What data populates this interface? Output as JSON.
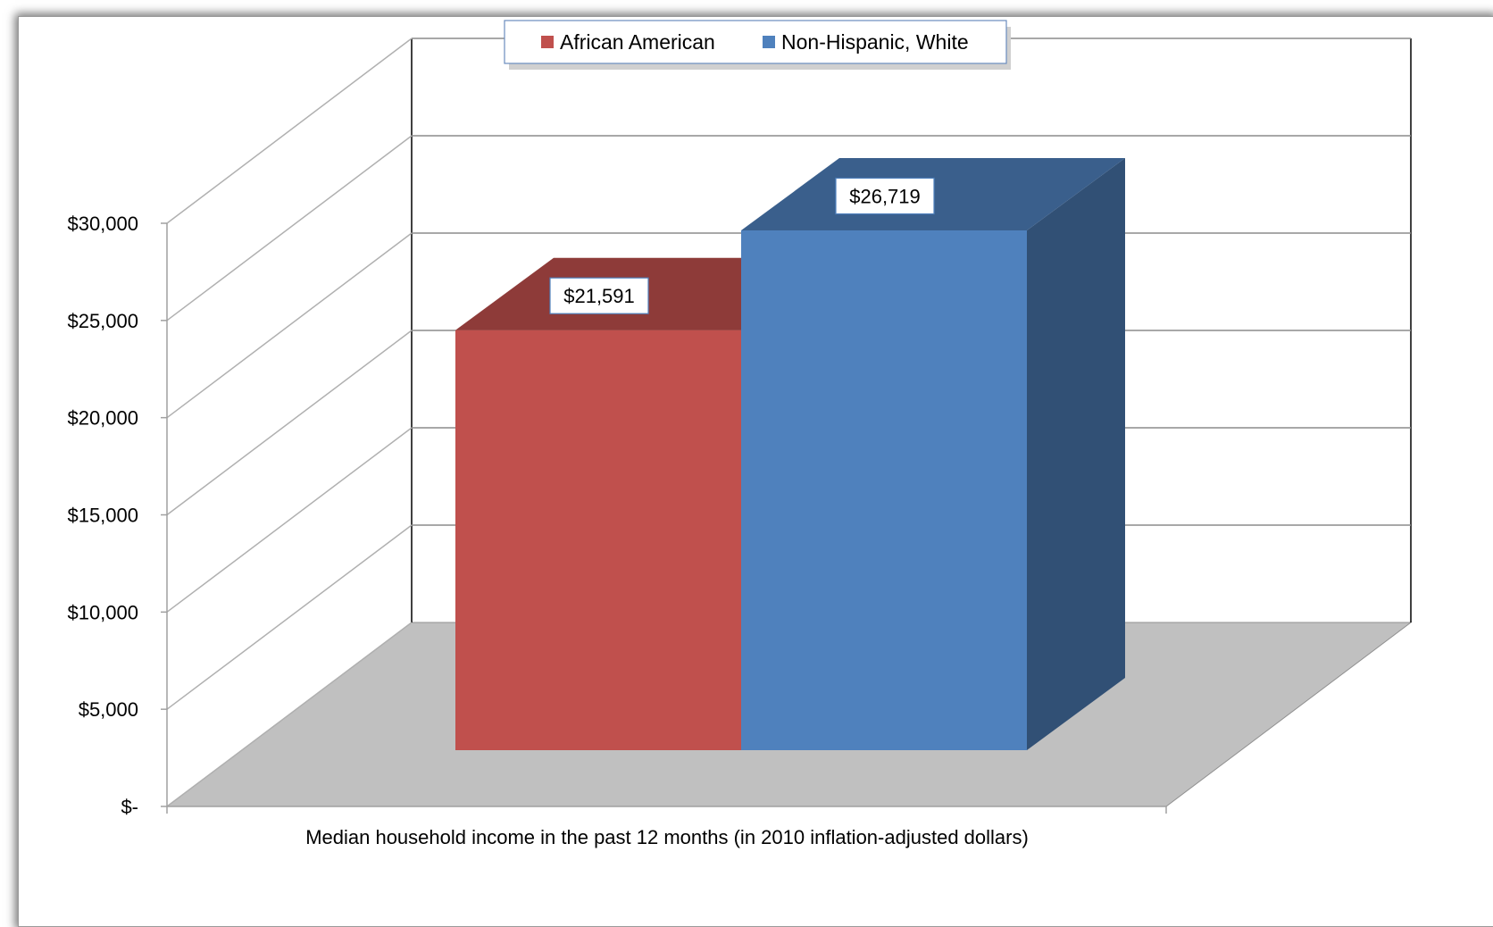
{
  "chart_data": {
    "type": "bar",
    "categories": [
      "Median household income in the past 12 months (in 2010 inflation-adjusted dollars)"
    ],
    "series": [
      {
        "name": "African American",
        "values": [
          21591
        ],
        "color": "#c0504d",
        "value_label": "$21,591"
      },
      {
        "name": "Non-Hispanic, White",
        "values": [
          26719
        ],
        "color": "#4f81bd",
        "value_label": "$26,719"
      }
    ],
    "xlabel": "Median household income in the past 12 months (in 2010 inflation-adjusted dollars)",
    "ylabel": "",
    "ylim": [
      0,
      30000
    ],
    "y_ticks": [
      {
        "value": 0,
        "label": "$-"
      },
      {
        "value": 5000,
        "label": "$5,000"
      },
      {
        "value": 10000,
        "label": "$10,000"
      },
      {
        "value": 15000,
        "label": "$15,000"
      },
      {
        "value": 20000,
        "label": "$20,000"
      },
      {
        "value": 25000,
        "label": "$25,000"
      },
      {
        "value": 30000,
        "label": "$30,000"
      }
    ],
    "grid": true,
    "legend": "top-center",
    "style": "3d-clustered-column"
  }
}
